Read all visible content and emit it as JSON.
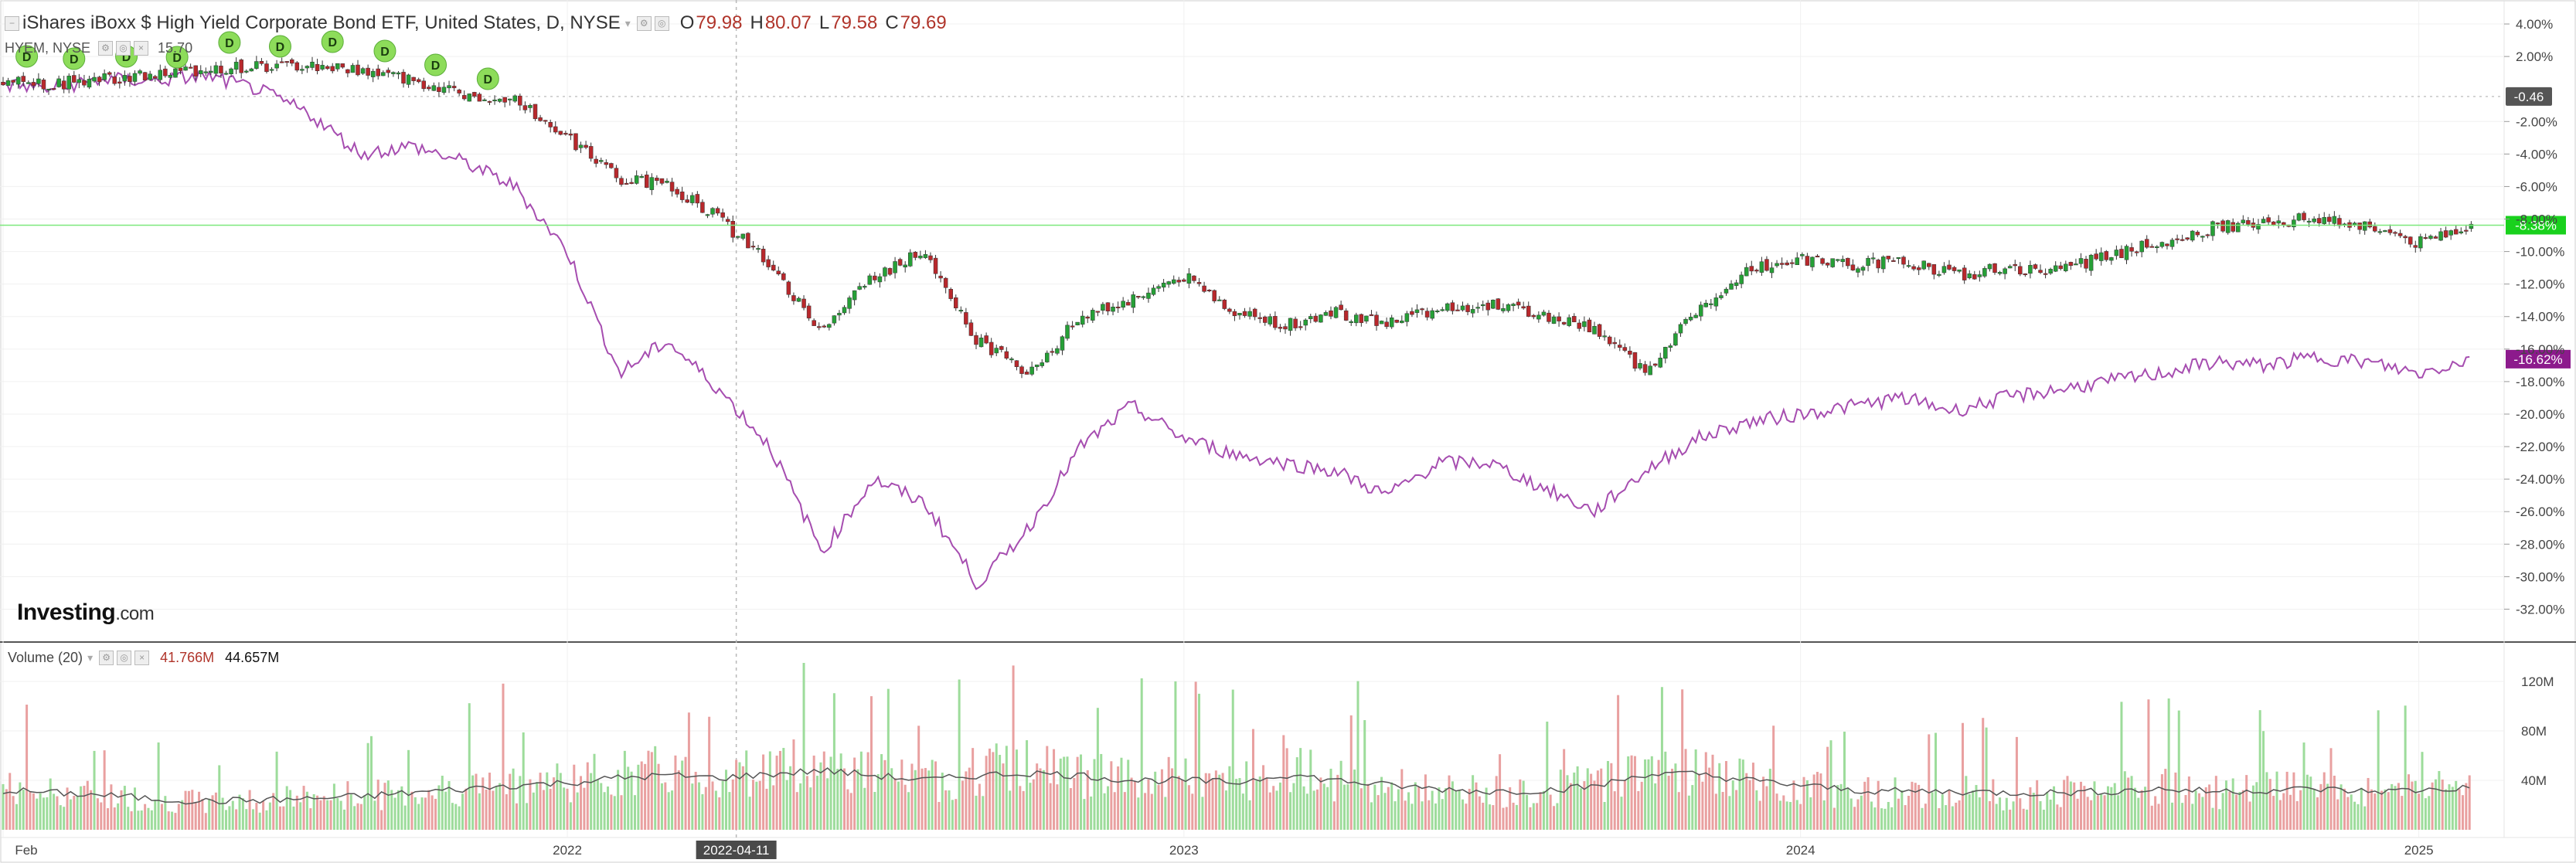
{
  "header": {
    "title": "iShares iBoxx $ High Yield Corporate Bond ETF, United States, D, NYSE",
    "ohlc": [
      {
        "label": "O",
        "value": "79.98"
      },
      {
        "label": "H",
        "value": "80.07"
      },
      {
        "label": "L",
        "value": "79.58"
      },
      {
        "label": "C",
        "value": "79.69"
      }
    ],
    "compare_label": "HYEM, NYSE",
    "compare_extra": "15.70"
  },
  "volume_legend": {
    "label": "Volume (20)",
    "value_red": "41.766M",
    "value_black": "44.657M"
  },
  "logo": {
    "main": "Investing",
    "suffix": ".com"
  },
  "colors": {
    "up": "#26a037",
    "down": "#b8282c",
    "compare_line": "#a64db0",
    "hyg_line": "#2d2d2d",
    "badge_hyg": "#19d11d",
    "badge_hyem": "#8c1a8c",
    "badge_zero": "#555555",
    "dividend": "#8ddc5a",
    "vol_up": "#9ddc9b",
    "vol_down": "#e9a0a0",
    "vol_ma": "#555555",
    "hline": "#7de87d",
    "grid": "#f0f0f0"
  },
  "chart_data": {
    "type": "line",
    "title": "iShares iBoxx $ High Yield Corporate Bond ETF, United States, D, NYSE",
    "xlabel": "",
    "ylabel": "",
    "x_ticks": [
      "Feb",
      "2022",
      "2023",
      "2024",
      "2025"
    ],
    "crosshair_date": "2022-04-11",
    "x_range": [
      "2021-02-01",
      "2025-02-15"
    ],
    "ylim": [
      -33.5,
      5
    ],
    "y_ticks": [
      "4.00%",
      "2.00%",
      "-2.00%",
      "-4.00%",
      "-6.00%",
      "-8.00%",
      "-10.00%",
      "-12.00%",
      "-14.00%",
      "-16.00%",
      "-18.00%",
      "-20.00%",
      "-22.00%",
      "-24.00%",
      "-26.00%",
      "-28.00%",
      "-30.00%",
      "-32.00%"
    ],
    "zero_badge": "-0.46",
    "grid": true,
    "series": [
      {
        "name": "iShares iBoxx $ High Yield Corporate Bond ETF",
        "style": "candlestick",
        "last_label": "-8.38%",
        "x": [
          "2021-02-01",
          "2021-03-01",
          "2021-04-01",
          "2021-05-01",
          "2021-06-01",
          "2021-07-01",
          "2021-08-01",
          "2021-09-01",
          "2021-10-01",
          "2021-11-01",
          "2021-12-01",
          "2022-01-01",
          "2022-02-01",
          "2022-03-01",
          "2022-04-01",
          "2022-05-01",
          "2022-06-01",
          "2022-07-01",
          "2022-08-01",
          "2022-09-01",
          "2022-10-01",
          "2022-11-01",
          "2022-12-01",
          "2023-01-01",
          "2023-02-01",
          "2023-03-01",
          "2023-04-01",
          "2023-05-01",
          "2023-06-01",
          "2023-07-01",
          "2023-08-01",
          "2023-09-01",
          "2023-10-01",
          "2023-11-01",
          "2023-12-01",
          "2024-01-01",
          "2024-02-01",
          "2024-03-01",
          "2024-04-01",
          "2024-05-01",
          "2024-06-01",
          "2024-07-01",
          "2024-08-01",
          "2024-09-01",
          "2024-10-01",
          "2024-11-01",
          "2024-12-01",
          "2025-01-01",
          "2025-02-01"
        ],
        "values": [
          0.5,
          0.3,
          0.6,
          0.8,
          1.2,
          1.3,
          1.4,
          1.1,
          0.5,
          -0.3,
          -0.5,
          -3.0,
          -5.5,
          -5.8,
          -8.0,
          -10.8,
          -15.0,
          -11.5,
          -10.0,
          -15.5,
          -17.5,
          -14.0,
          -13.0,
          -11.5,
          -13.8,
          -14.5,
          -13.8,
          -14.5,
          -13.5,
          -13.2,
          -14.0,
          -14.8,
          -17.5,
          -13.5,
          -11.0,
          -10.5,
          -10.8,
          -10.5,
          -11.5,
          -11.0,
          -11.2,
          -10.2,
          -9.5,
          -8.5,
          -8.2,
          -8.0,
          -8.5,
          -9.5,
          -8.4
        ]
      },
      {
        "name": "HYEM, NYSE",
        "style": "line",
        "last_label": "-16.62%",
        "x": [
          "2021-02-01",
          "2021-03-01",
          "2021-04-01",
          "2021-05-01",
          "2021-06-01",
          "2021-07-01",
          "2021-08-01",
          "2021-09-01",
          "2021-10-01",
          "2021-11-01",
          "2021-12-01",
          "2022-01-01",
          "2022-02-01",
          "2022-03-01",
          "2022-04-01",
          "2022-05-01",
          "2022-06-01",
          "2022-07-01",
          "2022-08-01",
          "2022-09-01",
          "2022-10-01",
          "2022-11-01",
          "2022-12-01",
          "2023-01-01",
          "2023-02-01",
          "2023-03-01",
          "2023-04-01",
          "2023-05-01",
          "2023-06-01",
          "2023-07-01",
          "2023-08-01",
          "2023-09-01",
          "2023-10-01",
          "2023-11-01",
          "2023-12-01",
          "2024-01-01",
          "2024-02-01",
          "2024-03-01",
          "2024-04-01",
          "2024-05-01",
          "2024-06-01",
          "2024-07-01",
          "2024-08-01",
          "2024-09-01",
          "2024-10-01",
          "2024-11-01",
          "2024-12-01",
          "2025-01-01",
          "2025-02-01"
        ],
        "values": [
          0.3,
          0.0,
          0.6,
          0.5,
          0.8,
          0.0,
          -1.5,
          -4.0,
          -3.5,
          -4.5,
          -6.0,
          -10.0,
          -17.5,
          -15.5,
          -18.5,
          -22.0,
          -28.5,
          -24.0,
          -25.5,
          -30.5,
          -27.0,
          -22.0,
          -19.5,
          -21.5,
          -22.5,
          -23.0,
          -23.5,
          -25.0,
          -23.0,
          -23.0,
          -24.5,
          -26.0,
          -23.5,
          -21.5,
          -20.5,
          -20.0,
          -19.5,
          -19.0,
          -19.8,
          -19.0,
          -18.5,
          -18.0,
          -17.5,
          -16.8,
          -17.0,
          -16.5,
          -16.8,
          -17.5,
          -16.6
        ]
      }
    ],
    "annotations": [
      {
        "label": "D",
        "date": "2021-02-15",
        "kind": "dividend"
      },
      {
        "label": "D",
        "date": "2021-03-15",
        "kind": "dividend"
      },
      {
        "label": "D",
        "date": "2021-04-15",
        "kind": "dividend"
      },
      {
        "label": "D",
        "date": "2021-05-15",
        "kind": "dividend"
      },
      {
        "label": "D",
        "date": "2021-06-15",
        "kind": "dividend"
      },
      {
        "label": "D",
        "date": "2021-07-15",
        "kind": "dividend"
      },
      {
        "label": "D",
        "date": "2021-08-15",
        "kind": "dividend"
      },
      {
        "label": "D",
        "date": "2021-09-15",
        "kind": "dividend"
      },
      {
        "label": "D",
        "date": "2021-10-15",
        "kind": "dividend"
      },
      {
        "label": "D",
        "date": "2021-11-15",
        "kind": "dividend"
      }
    ],
    "volume": {
      "label": "Volume (20)",
      "ylim": [
        0,
        140
      ],
      "y_ticks": [
        "120M",
        "80M",
        "40M"
      ],
      "unit": "M",
      "x": [
        "2021-02-01",
        "2021-03-01",
        "2021-04-01",
        "2021-05-01",
        "2021-06-01",
        "2021-07-01",
        "2021-08-01",
        "2021-09-01",
        "2021-10-01",
        "2021-11-01",
        "2021-12-01",
        "2022-01-01",
        "2022-02-01",
        "2022-03-01",
        "2022-04-01",
        "2022-05-01",
        "2022-06-01",
        "2022-07-01",
        "2022-08-01",
        "2022-09-01",
        "2022-10-01",
        "2022-11-01",
        "2022-12-01",
        "2023-01-01",
        "2023-02-01",
        "2023-03-01",
        "2023-04-01",
        "2023-05-01",
        "2023-06-01",
        "2023-07-01",
        "2023-08-01",
        "2023-09-01",
        "2023-10-01",
        "2023-11-01",
        "2023-12-01",
        "2024-01-01",
        "2024-02-01",
        "2024-03-01",
        "2024-04-01",
        "2024-05-01",
        "2024-06-01",
        "2024-07-01",
        "2024-08-01",
        "2024-09-01",
        "2024-10-01",
        "2024-11-01",
        "2024-12-01",
        "2025-01-01",
        "2025-02-01"
      ],
      "values": [
        35,
        30,
        28,
        25,
        22,
        24,
        26,
        28,
        30,
        35,
        38,
        40,
        45,
        48,
        42,
        50,
        55,
        45,
        38,
        48,
        52,
        45,
        40,
        42,
        38,
        55,
        40,
        35,
        32,
        30,
        32,
        38,
        52,
        48,
        40,
        35,
        30,
        30,
        32,
        28,
        30,
        32,
        35,
        30,
        32,
        35,
        30,
        33,
        35
      ],
      "ma": [
        32,
        30,
        28,
        25,
        23,
        24,
        25,
        27,
        30,
        33,
        36,
        38,
        42,
        44,
        42,
        45,
        48,
        44,
        40,
        44,
        46,
        44,
        40,
        40,
        38,
        45,
        40,
        36,
        33,
        31,
        32,
        35,
        45,
        45,
        40,
        36,
        32,
        31,
        31,
        30,
        30,
        31,
        33,
        31,
        32,
        33,
        31,
        32,
        34
      ]
    }
  }
}
